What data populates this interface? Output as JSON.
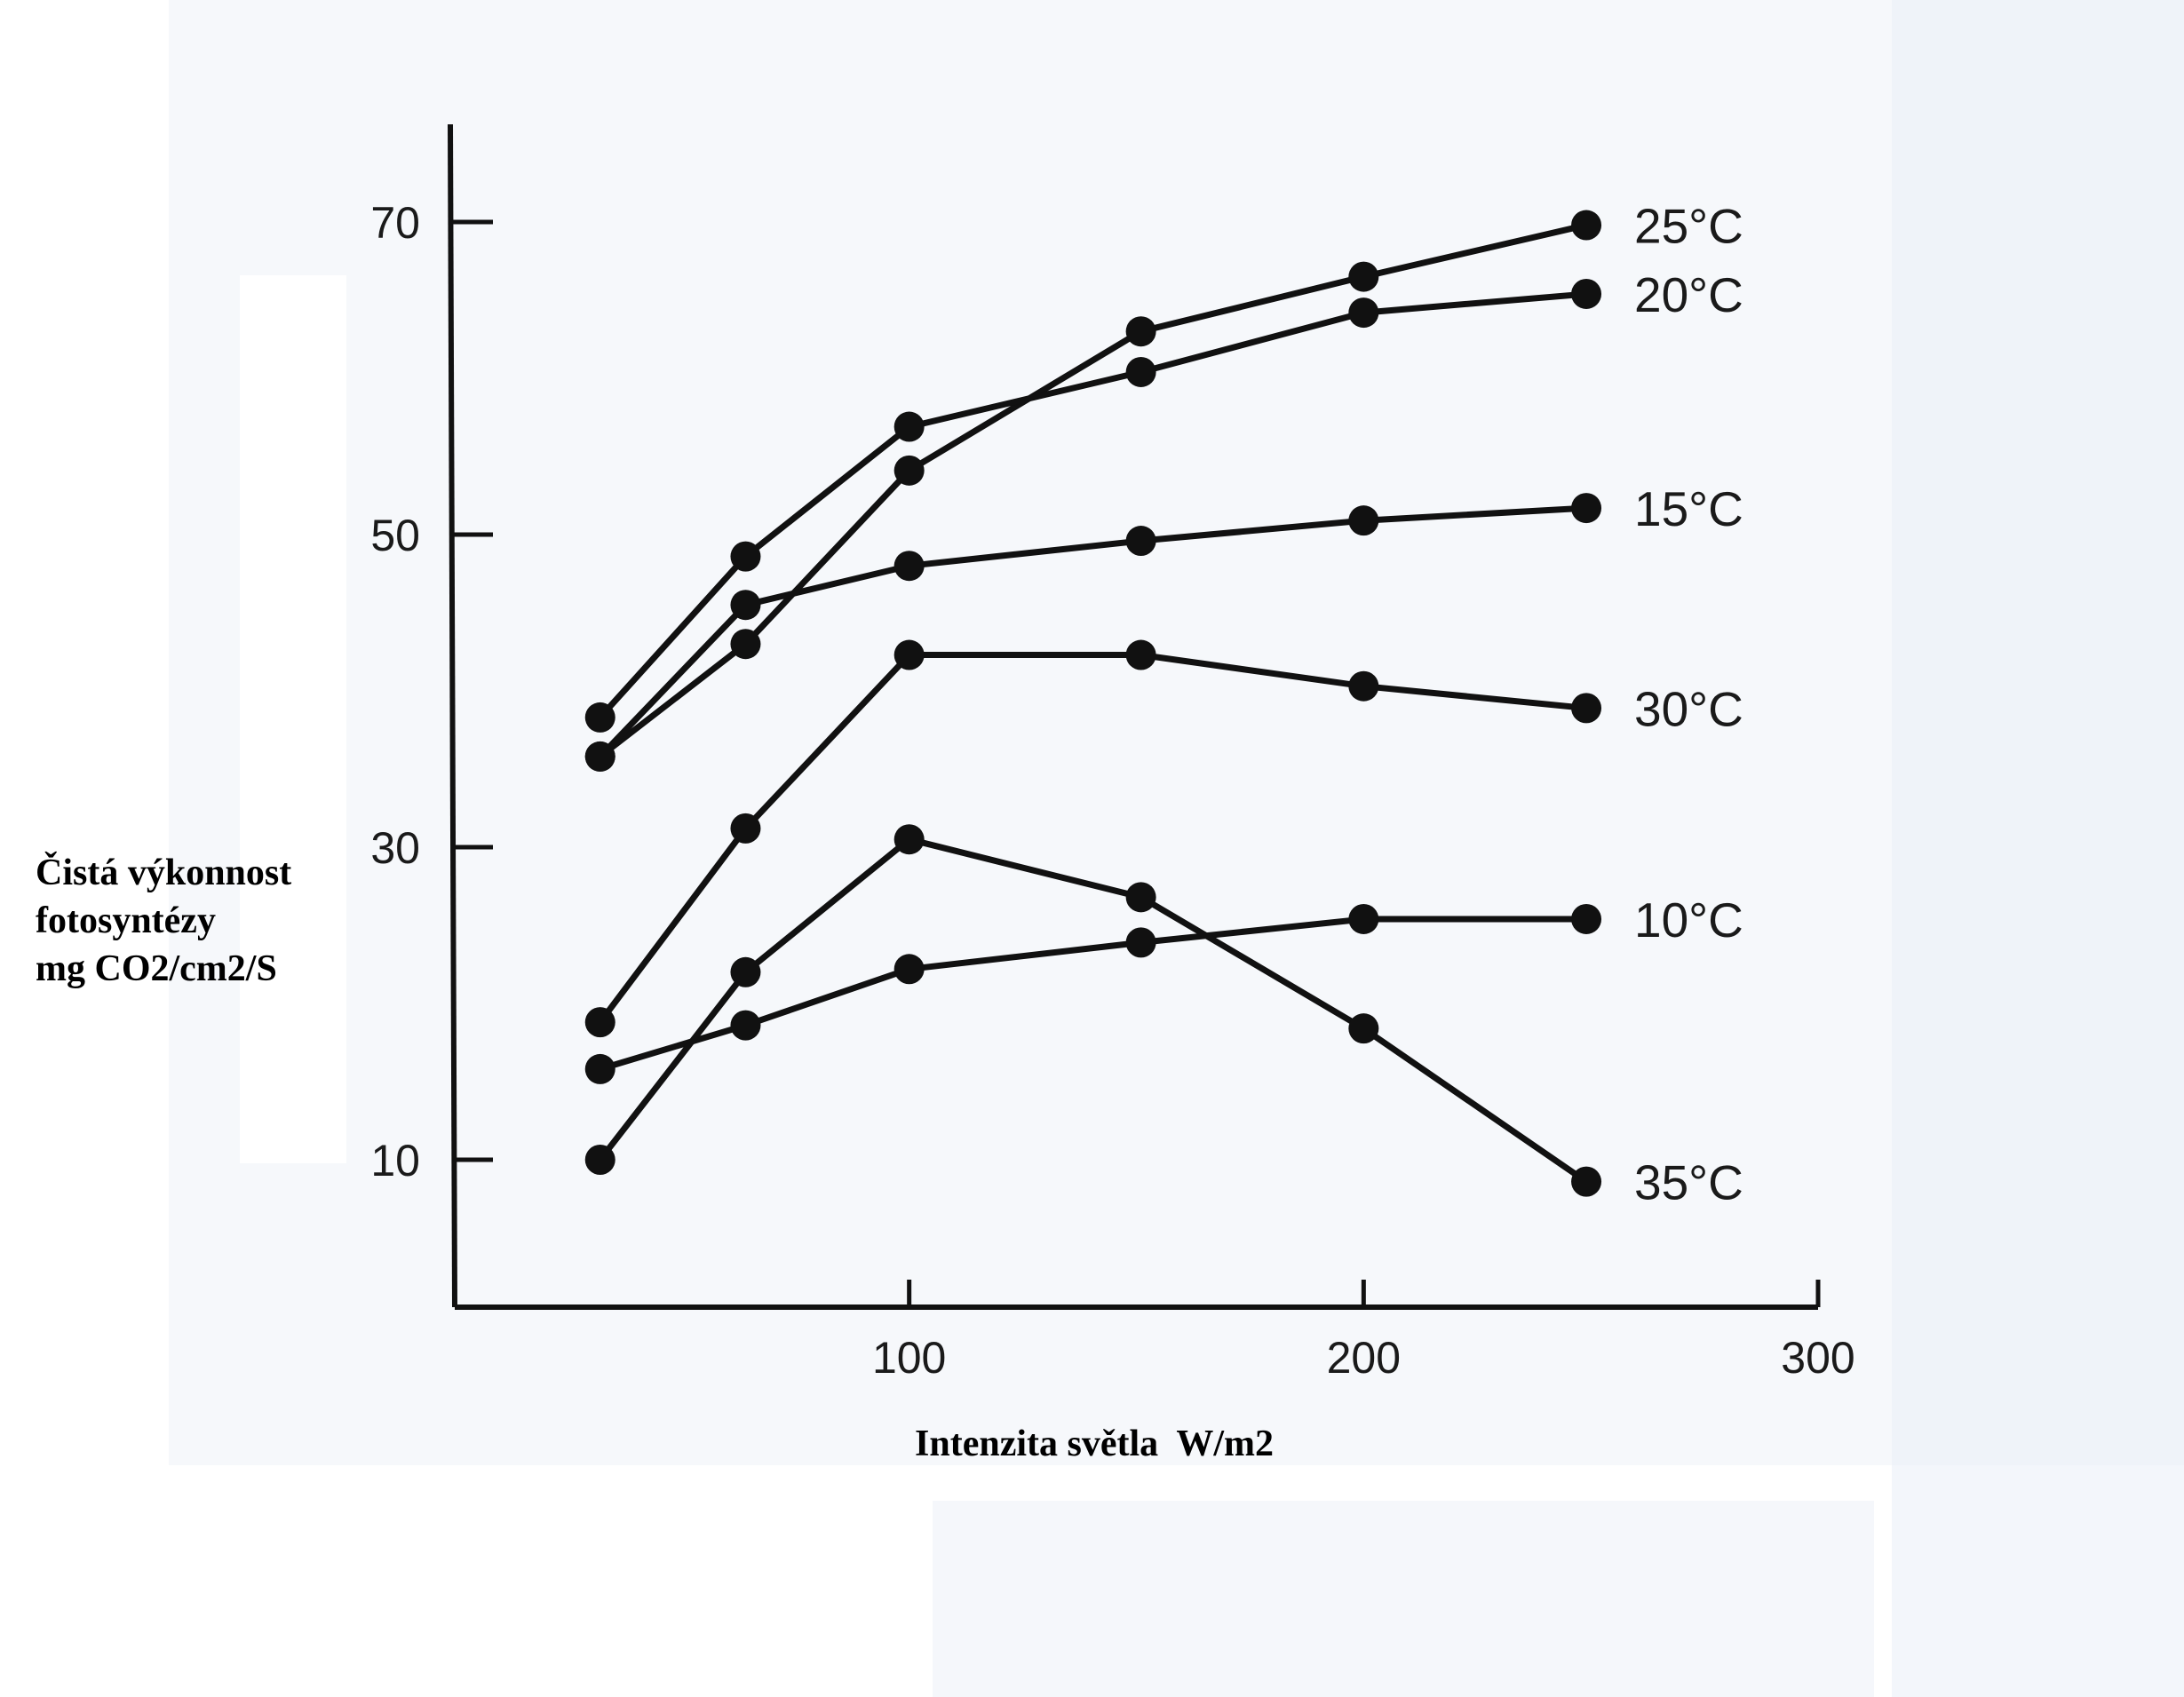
{
  "colors": {
    "ink": "#111111",
    "background": "#ffffff",
    "scan_tint": "#eef2f8"
  },
  "chart_data": {
    "type": "line",
    "title": "",
    "xlabel": "Intenzita světla  W/m2",
    "ylabel_lines": [
      "Čistá výkonnost",
      "fotosyntézy",
      "mg CO2/cm2/S"
    ],
    "xlim": [
      0,
      300
    ],
    "ylim": [
      0,
      76
    ],
    "x_ticks": [
      100,
      200,
      300
    ],
    "x_tick_labels": [
      "100",
      "200",
      "300"
    ],
    "y_ticks": [
      10,
      30,
      50,
      70
    ],
    "y_tick_labels": [
      "10",
      "30",
      "50",
      "70"
    ],
    "grid": false,
    "legend": "direct labels at line ends",
    "series": [
      {
        "name": "25°C",
        "x": [
          32,
          64,
          100,
          151,
          200,
          249
        ],
        "y": [
          35.8,
          43.0,
          54.1,
          63.0,
          66.5,
          69.8
        ]
      },
      {
        "name": "20°C",
        "x": [
          32,
          64,
          100,
          151,
          200,
          249
        ],
        "y": [
          38.3,
          48.6,
          56.9,
          60.4,
          64.2,
          65.4
        ]
      },
      {
        "name": "15°C",
        "x": [
          32,
          64,
          100,
          151,
          200,
          249
        ],
        "y": [
          35.8,
          45.5,
          48.0,
          49.6,
          50.9,
          51.7
        ]
      },
      {
        "name": "30°C",
        "x": [
          32,
          64,
          100,
          151,
          200,
          249
        ],
        "y": [
          18.8,
          31.2,
          42.3,
          42.3,
          40.3,
          38.9
        ]
      },
      {
        "name": "10°C",
        "x": [
          32,
          64,
          100,
          151,
          200,
          249
        ],
        "y": [
          15.8,
          18.6,
          22.2,
          23.9,
          25.4,
          25.4
        ]
      },
      {
        "name": "35°C",
        "x": [
          32,
          64,
          100,
          151,
          200,
          249
        ],
        "y": [
          10.0,
          22.0,
          30.5,
          26.8,
          18.4,
          8.6
        ]
      }
    ]
  }
}
